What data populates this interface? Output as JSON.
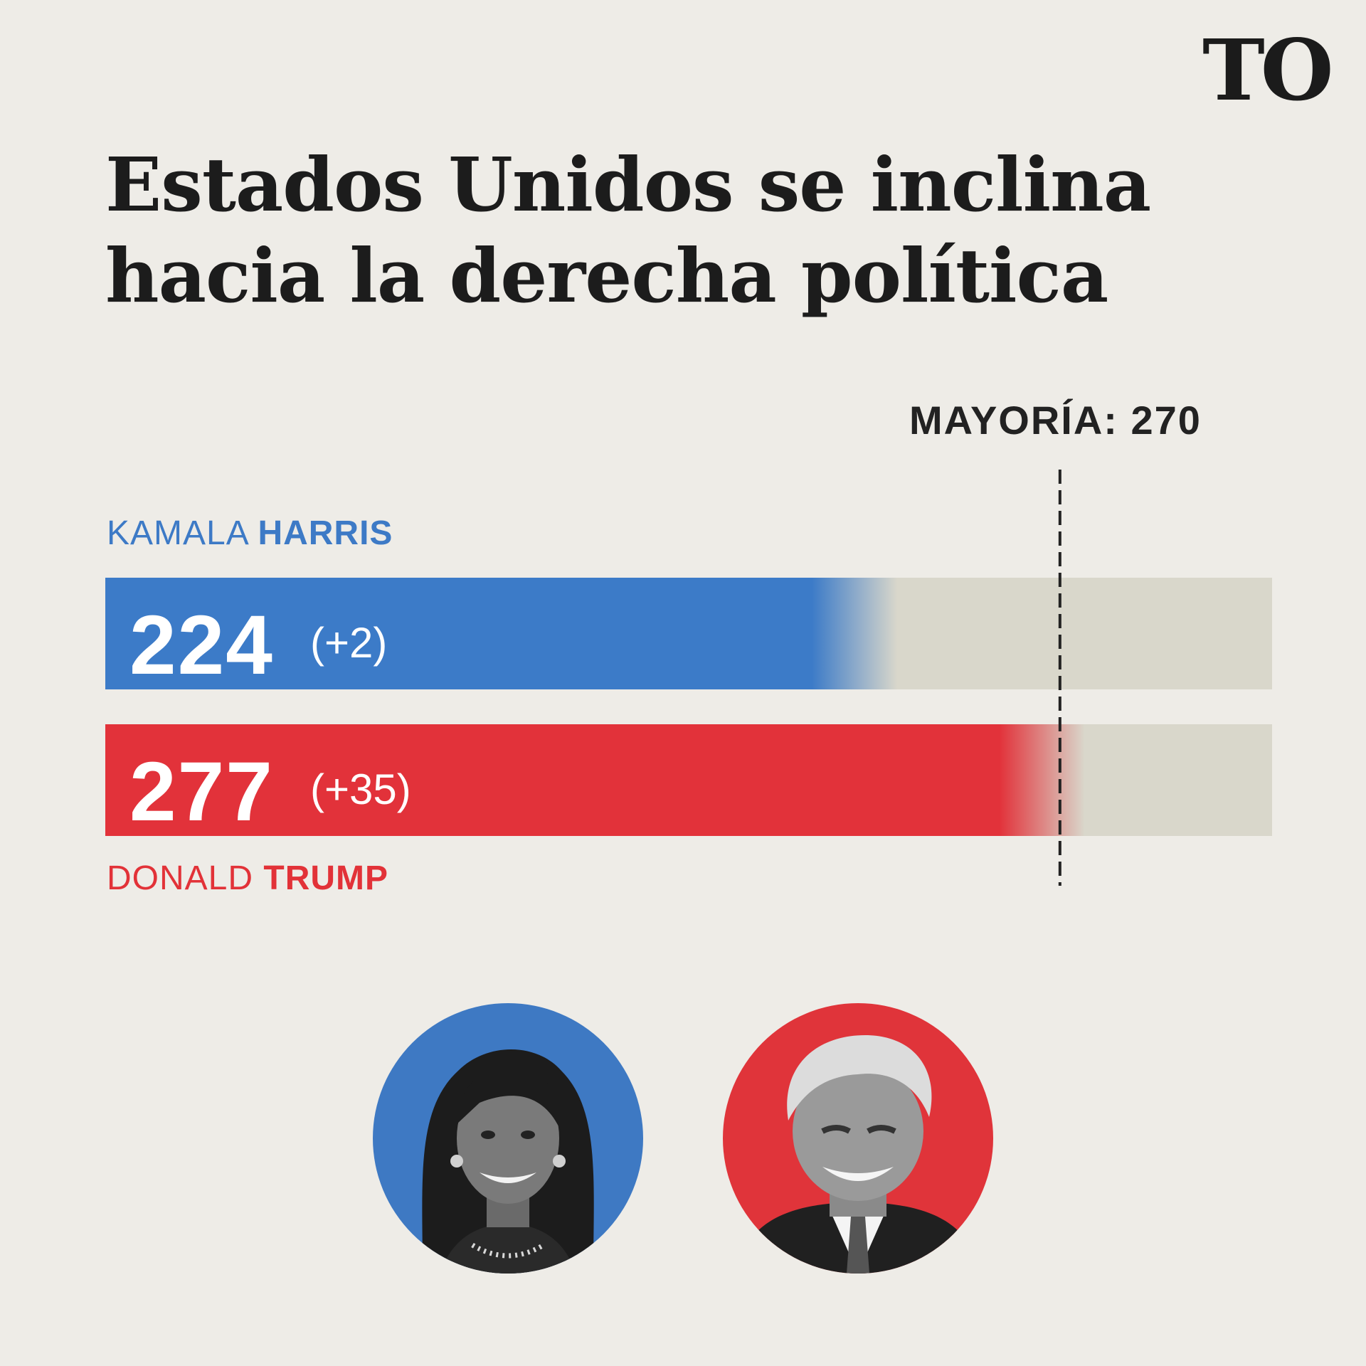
{
  "brand": {
    "logo_text": "TO"
  },
  "title": "Estados Unidos se inclina hacia la derecha política",
  "majority": {
    "label": "MAYORÍA: 270",
    "value": 270
  },
  "chart_data": {
    "type": "bar",
    "orientation": "horizontal",
    "title": "Estados Unidos se inclina hacia la derecha política",
    "categories": [
      "KAMALA HARRIS",
      "DONALD TRUMP"
    ],
    "values": [
      224,
      277
    ],
    "changes": [
      "(+2)",
      "(+35)"
    ],
    "value_labels": [
      "224",
      "277"
    ],
    "reference_line": {
      "value": 270,
      "label": "MAYORÍA: 270",
      "style": "dashed"
    },
    "xlim": [
      0,
      330
    ],
    "grid": false,
    "legend": "none",
    "colors": {
      "harris": "#3c7bc8",
      "trump": "#e2323a",
      "track": "#d9d7cb"
    }
  },
  "candidates": [
    {
      "first_name": "KAMALA",
      "last_name": "HARRIS",
      "color": "#3c7bc8"
    },
    {
      "first_name": "DONALD",
      "last_name": "TRUMP",
      "color": "#e2323a"
    }
  ]
}
